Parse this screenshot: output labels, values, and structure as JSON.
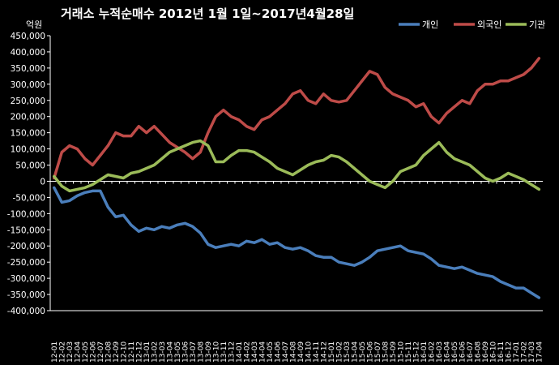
{
  "chart_data": {
    "type": "line",
    "title": "거래소 누적순매수 2012년 1월 1일~2017년4월28일",
    "unit_label": "억원",
    "ylim": [
      -400000,
      450000
    ],
    "yticks": [
      450000,
      400000,
      350000,
      300000,
      250000,
      200000,
      150000,
      100000,
      50000,
      0,
      -50000,
      -100000,
      -150000,
      -200000,
      -250000,
      -300000,
      -350000,
      -400000
    ],
    "ytick_labels": [
      "450,000",
      "400,000",
      "350,000",
      "300,000",
      "250,000",
      "200,000",
      "150,000",
      "100,000",
      "50,000",
      "0",
      "-50,000",
      "-100,000",
      "-150,000",
      "-200,000",
      "-250,000",
      "-300,000",
      "-350,000",
      "-400,000"
    ],
    "categories": [
      "12-01",
      "12-02",
      "12-03",
      "12-04",
      "12-05",
      "12-06",
      "12-07",
      "12-08",
      "12-09",
      "12-10",
      "12-11",
      "12-12",
      "13-01",
      "13-02",
      "13-03",
      "13-04",
      "13-05",
      "13-06",
      "13-07",
      "13-08",
      "13-09",
      "13-10",
      "13-11",
      "13-12",
      "14-01",
      "14-02",
      "14-03",
      "14-04",
      "14-05",
      "14-06",
      "14-07",
      "14-08",
      "14-09",
      "14-10",
      "14-11",
      "14-12",
      "15-01",
      "15-02",
      "15-03",
      "15-04",
      "15-05",
      "15-06",
      "15-07",
      "15-08",
      "15-09",
      "15-10",
      "15-11",
      "15-12",
      "16-01",
      "16-02",
      "16-03",
      "16-04",
      "16-05",
      "16-06",
      "16-07",
      "16-08",
      "16-09",
      "16-10",
      "16-11",
      "16-12",
      "17-01",
      "17-02",
      "17-03",
      "17-04"
    ],
    "legend_position": "top-right",
    "grid": false,
    "series": [
      {
        "name": "개인",
        "color": "#4a7ebb",
        "values": [
          -20000,
          -65000,
          -60000,
          -45000,
          -35000,
          -30000,
          -30000,
          -80000,
          -110000,
          -105000,
          -135000,
          -155000,
          -145000,
          -150000,
          -140000,
          -145000,
          -135000,
          -130000,
          -140000,
          -160000,
          -195000,
          -205000,
          -200000,
          -195000,
          -200000,
          -185000,
          -190000,
          -180000,
          -195000,
          -190000,
          -205000,
          -210000,
          -205000,
          -215000,
          -230000,
          -235000,
          -235000,
          -250000,
          -255000,
          -260000,
          -250000,
          -235000,
          -215000,
          -210000,
          -205000,
          -200000,
          -215000,
          -220000,
          -225000,
          -240000,
          -260000,
          -265000,
          -270000,
          -265000,
          -275000,
          -285000,
          -290000,
          -295000,
          -310000,
          -320000,
          -330000,
          -330000,
          -345000,
          -360000
        ]
      },
      {
        "name": "외국인",
        "color": "#be4b48",
        "values": [
          10000,
          90000,
          110000,
          100000,
          70000,
          50000,
          80000,
          110000,
          150000,
          140000,
          140000,
          170000,
          150000,
          170000,
          145000,
          120000,
          105000,
          90000,
          70000,
          90000,
          150000,
          200000,
          220000,
          200000,
          190000,
          170000,
          160000,
          190000,
          200000,
          220000,
          240000,
          270000,
          280000,
          250000,
          240000,
          270000,
          250000,
          245000,
          250000,
          280000,
          310000,
          340000,
          330000,
          290000,
          270000,
          260000,
          250000,
          230000,
          240000,
          200000,
          180000,
          210000,
          230000,
          250000,
          240000,
          280000,
          300000,
          300000,
          310000,
          310000,
          320000,
          330000,
          350000,
          380000
        ]
      },
      {
        "name": "기관",
        "color": "#9bbb59",
        "values": [
          15000,
          -15000,
          -30000,
          -25000,
          -20000,
          -10000,
          5000,
          20000,
          15000,
          10000,
          25000,
          30000,
          40000,
          50000,
          70000,
          90000,
          100000,
          110000,
          120000,
          125000,
          110000,
          60000,
          60000,
          80000,
          95000,
          95000,
          90000,
          75000,
          60000,
          40000,
          30000,
          20000,
          35000,
          50000,
          60000,
          65000,
          80000,
          75000,
          60000,
          40000,
          20000,
          0,
          -10000,
          -20000,
          0,
          30000,
          40000,
          50000,
          80000,
          100000,
          120000,
          90000,
          70000,
          60000,
          50000,
          30000,
          10000,
          0,
          10000,
          25000,
          15000,
          5000,
          -10000,
          -25000
        ]
      }
    ]
  }
}
